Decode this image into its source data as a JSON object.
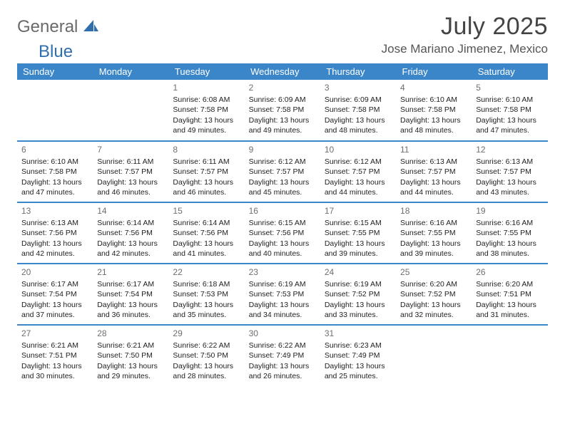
{
  "brand": {
    "general": "General",
    "blue": "Blue"
  },
  "title": {
    "month": "July 2025",
    "location": "Jose Mariano Jimenez, Mexico"
  },
  "colors": {
    "header_bg": "#3b86c8",
    "header_text": "#ffffff",
    "row_border": "#3b86c8",
    "logo_gray": "#6a6a6a",
    "logo_blue": "#2f6fae",
    "title_color": "#444444",
    "body_text": "#222222"
  },
  "weekdays": [
    "Sunday",
    "Monday",
    "Tuesday",
    "Wednesday",
    "Thursday",
    "Friday",
    "Saturday"
  ],
  "weeks": [
    [
      null,
      null,
      {
        "n": "1",
        "sr": "6:08 AM",
        "ss": "7:58 PM",
        "dl": "13 hours and 49 minutes."
      },
      {
        "n": "2",
        "sr": "6:09 AM",
        "ss": "7:58 PM",
        "dl": "13 hours and 49 minutes."
      },
      {
        "n": "3",
        "sr": "6:09 AM",
        "ss": "7:58 PM",
        "dl": "13 hours and 48 minutes."
      },
      {
        "n": "4",
        "sr": "6:10 AM",
        "ss": "7:58 PM",
        "dl": "13 hours and 48 minutes."
      },
      {
        "n": "5",
        "sr": "6:10 AM",
        "ss": "7:58 PM",
        "dl": "13 hours and 47 minutes."
      }
    ],
    [
      {
        "n": "6",
        "sr": "6:10 AM",
        "ss": "7:58 PM",
        "dl": "13 hours and 47 minutes."
      },
      {
        "n": "7",
        "sr": "6:11 AM",
        "ss": "7:57 PM",
        "dl": "13 hours and 46 minutes."
      },
      {
        "n": "8",
        "sr": "6:11 AM",
        "ss": "7:57 PM",
        "dl": "13 hours and 46 minutes."
      },
      {
        "n": "9",
        "sr": "6:12 AM",
        "ss": "7:57 PM",
        "dl": "13 hours and 45 minutes."
      },
      {
        "n": "10",
        "sr": "6:12 AM",
        "ss": "7:57 PM",
        "dl": "13 hours and 44 minutes."
      },
      {
        "n": "11",
        "sr": "6:13 AM",
        "ss": "7:57 PM",
        "dl": "13 hours and 44 minutes."
      },
      {
        "n": "12",
        "sr": "6:13 AM",
        "ss": "7:57 PM",
        "dl": "13 hours and 43 minutes."
      }
    ],
    [
      {
        "n": "13",
        "sr": "6:13 AM",
        "ss": "7:56 PM",
        "dl": "13 hours and 42 minutes."
      },
      {
        "n": "14",
        "sr": "6:14 AM",
        "ss": "7:56 PM",
        "dl": "13 hours and 42 minutes."
      },
      {
        "n": "15",
        "sr": "6:14 AM",
        "ss": "7:56 PM",
        "dl": "13 hours and 41 minutes."
      },
      {
        "n": "16",
        "sr": "6:15 AM",
        "ss": "7:56 PM",
        "dl": "13 hours and 40 minutes."
      },
      {
        "n": "17",
        "sr": "6:15 AM",
        "ss": "7:55 PM",
        "dl": "13 hours and 39 minutes."
      },
      {
        "n": "18",
        "sr": "6:16 AM",
        "ss": "7:55 PM",
        "dl": "13 hours and 39 minutes."
      },
      {
        "n": "19",
        "sr": "6:16 AM",
        "ss": "7:55 PM",
        "dl": "13 hours and 38 minutes."
      }
    ],
    [
      {
        "n": "20",
        "sr": "6:17 AM",
        "ss": "7:54 PM",
        "dl": "13 hours and 37 minutes."
      },
      {
        "n": "21",
        "sr": "6:17 AM",
        "ss": "7:54 PM",
        "dl": "13 hours and 36 minutes."
      },
      {
        "n": "22",
        "sr": "6:18 AM",
        "ss": "7:53 PM",
        "dl": "13 hours and 35 minutes."
      },
      {
        "n": "23",
        "sr": "6:19 AM",
        "ss": "7:53 PM",
        "dl": "13 hours and 34 minutes."
      },
      {
        "n": "24",
        "sr": "6:19 AM",
        "ss": "7:52 PM",
        "dl": "13 hours and 33 minutes."
      },
      {
        "n": "25",
        "sr": "6:20 AM",
        "ss": "7:52 PM",
        "dl": "13 hours and 32 minutes."
      },
      {
        "n": "26",
        "sr": "6:20 AM",
        "ss": "7:51 PM",
        "dl": "13 hours and 31 minutes."
      }
    ],
    [
      {
        "n": "27",
        "sr": "6:21 AM",
        "ss": "7:51 PM",
        "dl": "13 hours and 30 minutes."
      },
      {
        "n": "28",
        "sr": "6:21 AM",
        "ss": "7:50 PM",
        "dl": "13 hours and 29 minutes."
      },
      {
        "n": "29",
        "sr": "6:22 AM",
        "ss": "7:50 PM",
        "dl": "13 hours and 28 minutes."
      },
      {
        "n": "30",
        "sr": "6:22 AM",
        "ss": "7:49 PM",
        "dl": "13 hours and 26 minutes."
      },
      {
        "n": "31",
        "sr": "6:23 AM",
        "ss": "7:49 PM",
        "dl": "13 hours and 25 minutes."
      },
      null,
      null
    ]
  ],
  "labels": {
    "sunrise_prefix": "Sunrise: ",
    "sunset_prefix": "Sunset: ",
    "daylight_prefix": "Daylight: "
  }
}
